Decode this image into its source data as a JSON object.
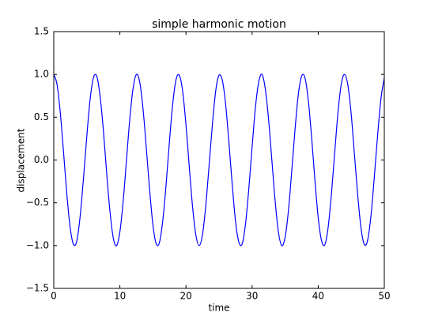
{
  "chart_data": {
    "type": "line",
    "title": "simple harmonic motion",
    "x_label": "time",
    "y_label": "displacement",
    "x": [
      0,
      0.5,
      1,
      1.5,
      2,
      2.5,
      3,
      3.5,
      4,
      4.5,
      5,
      5.5,
      6,
      6.5,
      7,
      7.5,
      8,
      8.5,
      9,
      9.5,
      10,
      10.5,
      11,
      11.5,
      12,
      12.5,
      13,
      13.5,
      14,
      14.5,
      15,
      15.5,
      16,
      16.5,
      17,
      17.5,
      18,
      18.5,
      19,
      19.5,
      20,
      20.5,
      21,
      21.5,
      22,
      22.5,
      23,
      23.5,
      24,
      24.5,
      25,
      25.5,
      26,
      26.5,
      27,
      27.5,
      28,
      28.5,
      29,
      29.5,
      30,
      30.5,
      31,
      31.5,
      32,
      32.5,
      33,
      33.5,
      34,
      34.5,
      35,
      35.5,
      36,
      36.5,
      37,
      37.5,
      38,
      38.5,
      39,
      39.5,
      40,
      40.5,
      41,
      41.5,
      42,
      42.5,
      43,
      43.5,
      44,
      44.5,
      45,
      45.5,
      46,
      46.5,
      47,
      47.5,
      48,
      48.5,
      49,
      49.5,
      50
    ],
    "series": [
      {
        "color": "#0000ff",
        "values": [
          1.0,
          0.88,
          0.54,
          0.07,
          -0.42,
          -0.8,
          -0.99,
          -0.94,
          -0.65,
          -0.21,
          0.28,
          0.71,
          0.96,
          0.98,
          0.75,
          0.35,
          -0.15,
          -0.6,
          -0.91,
          -1.0,
          -0.84,
          -0.48,
          0.0,
          0.48,
          0.84,
          1.0,
          0.91,
          0.6,
          0.14,
          -0.35,
          -0.76,
          -0.98,
          -0.96,
          -0.7,
          -0.28,
          0.22,
          0.66,
          0.94,
          0.99,
          0.8,
          0.41,
          -0.08,
          -0.55,
          -0.88,
          -1.0,
          -0.87,
          -0.53,
          -0.06,
          0.42,
          0.81,
          0.99,
          0.93,
          0.65,
          0.2,
          -0.29,
          -0.72,
          -0.96,
          -0.98,
          -0.75,
          -0.34,
          0.15,
          0.61,
          0.91,
          1.0,
          0.83,
          0.47,
          -0.01,
          -0.49,
          -0.85,
          -1.0,
          -0.9,
          -0.59,
          -0.13,
          0.36,
          0.77,
          0.98,
          0.96,
          0.7,
          0.27,
          -0.23,
          -0.67,
          -0.94,
          -0.99,
          -0.79,
          -0.4,
          0.09,
          0.56,
          0.89,
          1.0,
          0.87,
          0.53,
          0.05,
          -0.43,
          -0.81,
          -0.99,
          -0.93,
          -0.64,
          -0.19,
          0.3,
          0.72,
          0.96
        ]
      }
    ],
    "xlim": [
      0,
      50
    ],
    "xticks": [
      0,
      10,
      20,
      30,
      40,
      50
    ],
    "ylim": [
      -1.5,
      1.5
    ],
    "yticks": [
      {
        "value": -1.5,
        "label": "−1.5"
      },
      {
        "value": -1.0,
        "label": "−1.0"
      },
      {
        "value": -0.5,
        "label": "−0.5"
      },
      {
        "value": 0,
        "label": "0.0"
      },
      0.5,
      {
        "value": 1.0,
        "label": "1.0"
      },
      1.5
    ],
    "grid": false
  }
}
